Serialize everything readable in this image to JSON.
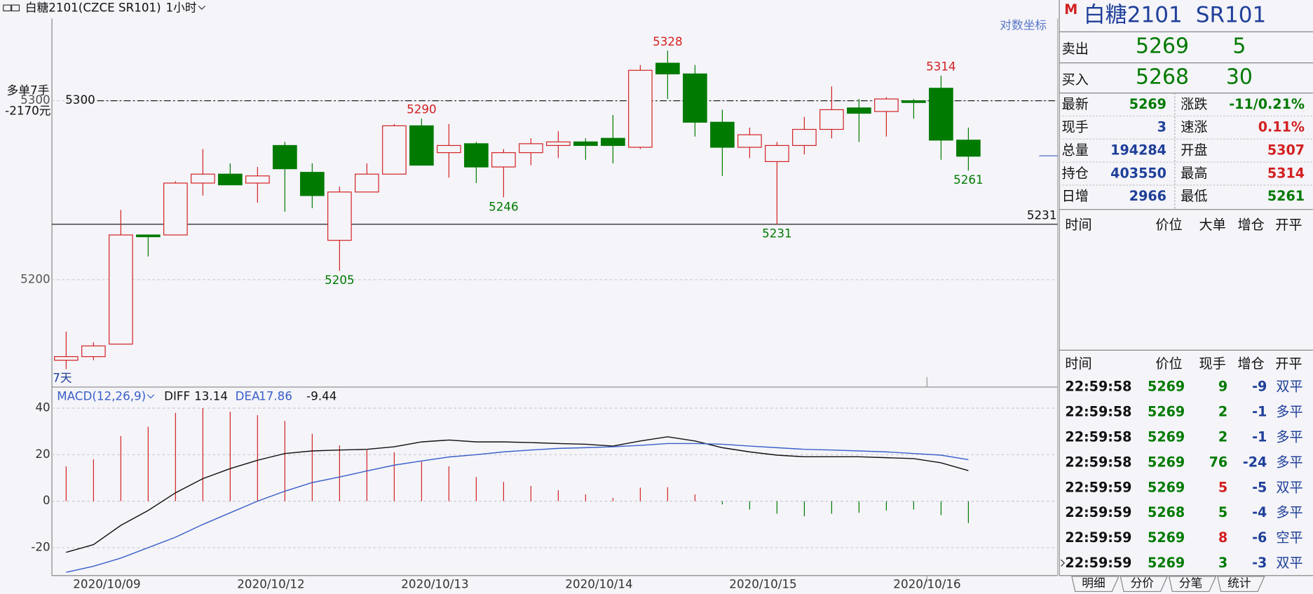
{
  "header": {
    "title": "白糖2101(CZCE SR101)",
    "period": "1小时"
  },
  "chart_data": [
    {
      "type": "candlestick",
      "categories": [
        null,
        "2020/10/09",
        null,
        null,
        null,
        null,
        null,
        "2020/10/12",
        null,
        null,
        null,
        null,
        null,
        "2020/10/13",
        null,
        null,
        null,
        null,
        null,
        "2020/10/14",
        null,
        null,
        null,
        null,
        null,
        "2020/10/15",
        null,
        null,
        null,
        null,
        null,
        "2020/10/16",
        null,
        null
      ],
      "open": [
        5155,
        5157,
        5164,
        5225,
        5225,
        5254,
        5259,
        5254,
        5275,
        5260,
        5222,
        5249,
        5259,
        5286,
        5271,
        5276,
        5263,
        5271,
        5275,
        5277,
        5279,
        5274,
        5321,
        5315,
        5288,
        5274,
        5266,
        5275,
        5284,
        5296,
        5294,
        5300,
        5307,
        5278
      ],
      "high": [
        5171,
        5165,
        5239,
        5225,
        5255,
        5273,
        5265,
        5263,
        5277,
        5265,
        5252,
        5265,
        5287,
        5290,
        5287,
        5277,
        5273,
        5279,
        5283,
        5279,
        5292,
        5320,
        5328,
        5320,
        5295,
        5285,
        5277,
        5291,
        5308,
        5301,
        5302,
        5301,
        5314,
        5285
      ],
      "low": [
        5150,
        5155,
        5164,
        5213,
        5225,
        5247,
        5253,
        5243,
        5238,
        5240,
        5205,
        5249,
        5259,
        5264,
        5257,
        5254,
        5246,
        5264,
        5268,
        5267,
        5265,
        5273,
        5301,
        5280,
        5258,
        5268,
        5231,
        5270,
        5279,
        5277,
        5280,
        5290,
        5267,
        5261
      ],
      "close": [
        5157,
        5163,
        5225,
        5224,
        5254,
        5259,
        5253,
        5258,
        5262,
        5247,
        5249,
        5259,
        5286,
        5264,
        5275,
        5263,
        5271,
        5276,
        5277,
        5275,
        5275,
        5317,
        5315,
        5288,
        5274,
        5281,
        5275,
        5284,
        5295,
        5293,
        5301,
        5299,
        5278,
        5269
      ],
      "high_labels": [
        null,
        null,
        null,
        null,
        null,
        null,
        null,
        null,
        null,
        null,
        null,
        null,
        null,
        "5290",
        null,
        null,
        null,
        null,
        null,
        null,
        null,
        null,
        "5328",
        null,
        null,
        null,
        null,
        null,
        null,
        null,
        null,
        null,
        "5314",
        null
      ],
      "low_labels": [
        null,
        null,
        null,
        null,
        null,
        null,
        null,
        null,
        null,
        null,
        "5205",
        null,
        null,
        null,
        null,
        null,
        "5246",
        null,
        null,
        null,
        null,
        null,
        null,
        null,
        null,
        null,
        "5231",
        null,
        null,
        null,
        null,
        null,
        null,
        "5261"
      ],
      "up_color": "#d42020",
      "down_color": "#007a00",
      "ylim": [
        5140,
        5346
      ],
      "yticks": [
        5200,
        5300
      ],
      "grid": true,
      "ref_lines": [
        {
          "value": 5300,
          "style": "dash-dot",
          "label_position": "left"
        },
        {
          "value": 5231,
          "style": "solid",
          "label_position": "right"
        }
      ],
      "position": {
        "label": "多单7手",
        "pnl": "-2170元"
      },
      "scale_toggle": "对数坐标",
      "range_label": "7天"
    },
    {
      "type": "macd",
      "title": "MACD(12,26,9)",
      "ylim": [
        -32,
        48
      ],
      "yticks": [
        40,
        20,
        0,
        -20
      ],
      "grid": true,
      "series": [
        {
          "name": "DIFF",
          "color": "#111111",
          "values": [
            -22,
            -18.7,
            -10.4,
            -4,
            3.6,
            9.7,
            14,
            17.6,
            20.5,
            21.6,
            22,
            22.3,
            23.4,
            25.5,
            26.3,
            25.5,
            25.5,
            25.2,
            24.8,
            24.5,
            23.7,
            25.9,
            27.7,
            25.9,
            23,
            21.2,
            19.8,
            19.1,
            19.1,
            19.1,
            18.7,
            18.3,
            16.5,
            13.14
          ]
        },
        {
          "name": "DEA",
          "color": "#3a5fc8",
          "values": [
            -30.6,
            -28,
            -24.5,
            -20,
            -15.5,
            -10,
            -5,
            0,
            4.3,
            8,
            10.4,
            13,
            15.5,
            17.3,
            19,
            20,
            21.2,
            22,
            22.7,
            23,
            23.4,
            24,
            24.8,
            24.8,
            24.5,
            23.7,
            23,
            22.3,
            22,
            21.6,
            21.2,
            20.5,
            19.8,
            17.86
          ]
        }
      ],
      "histogram": {
        "values": [
          15,
          18,
          28,
          32,
          38,
          40,
          38.5,
          37,
          34.5,
          29,
          24,
          22,
          21,
          17,
          15,
          10.4,
          8.3,
          6.5,
          4.7,
          2.9,
          1.4,
          5.8,
          6,
          2.9,
          -1.4,
          -3.6,
          -5.4,
          -6.5,
          -5.4,
          -5,
          -4,
          -3.6,
          -6,
          -9.44
        ],
        "up_color": "#d42020",
        "down_color": "#007a00"
      }
    }
  ],
  "quote": {
    "badge": "M",
    "name": "白糖2101",
    "code": "SR101",
    "ask": {
      "label": "卖出",
      "price": 5269,
      "volume": 5
    },
    "bid": {
      "label": "买入",
      "price": 5268,
      "volume": 30
    },
    "stats": [
      {
        "label": "最新",
        "value": "5269",
        "color": "#007a00"
      },
      {
        "label": "现手",
        "value": "3",
        "color": "#1f3f99"
      },
      {
        "label": "总量",
        "value": "194284",
        "color": "#1f3f99"
      },
      {
        "label": "持仓",
        "value": "403550",
        "color": "#1f3f99"
      },
      {
        "label": "日增",
        "value": "2966",
        "color": "#1f3f99"
      },
      {
        "label": "涨跌",
        "value": "-11/0.21%",
        "color": "#007a00"
      },
      {
        "label": "速涨",
        "value": "0.11%",
        "color": "#d42020"
      },
      {
        "label": "开盘",
        "value": "5307",
        "color": "#d42020"
      },
      {
        "label": "最高",
        "value": "5314",
        "color": "#d42020"
      },
      {
        "label": "最低",
        "value": "5261",
        "color": "#007a00"
      }
    ]
  },
  "big_orders": {
    "headers": [
      "时间",
      "价位",
      "大单",
      "增仓",
      "开平"
    ]
  },
  "trades": {
    "headers": [
      "时间",
      "价位",
      "现手",
      "增仓",
      "开平"
    ],
    "rows": [
      {
        "time": "22:59:58",
        "price": 5269,
        "hand": 9,
        "oi": -9,
        "type": "双平",
        "hand_color": "#007a00"
      },
      {
        "time": "22:59:58",
        "price": 5269,
        "hand": 2,
        "oi": -1,
        "type": "多平",
        "hand_color": "#007a00"
      },
      {
        "time": "22:59:58",
        "price": 5269,
        "hand": 2,
        "oi": -1,
        "type": "多平",
        "hand_color": "#007a00"
      },
      {
        "time": "22:59:58",
        "price": 5269,
        "hand": 76,
        "oi": -24,
        "type": "多平",
        "hand_color": "#007a00"
      },
      {
        "time": "22:59:59",
        "price": 5269,
        "hand": 5,
        "oi": -5,
        "type": "双平",
        "hand_color": "#d42020"
      },
      {
        "time": "22:59:59",
        "price": 5268,
        "hand": 5,
        "oi": -4,
        "type": "多平",
        "hand_color": "#007a00"
      },
      {
        "time": "22:59:59",
        "price": 5269,
        "hand": 8,
        "oi": -6,
        "type": "空平",
        "hand_color": "#d42020"
      },
      {
        "time": "22:59:59",
        "price": 5269,
        "hand": 3,
        "oi": -3,
        "type": "双平",
        "hand_color": "#007a00"
      }
    ]
  },
  "tabs": [
    "明细",
    "分价",
    "分笔",
    "统计"
  ]
}
